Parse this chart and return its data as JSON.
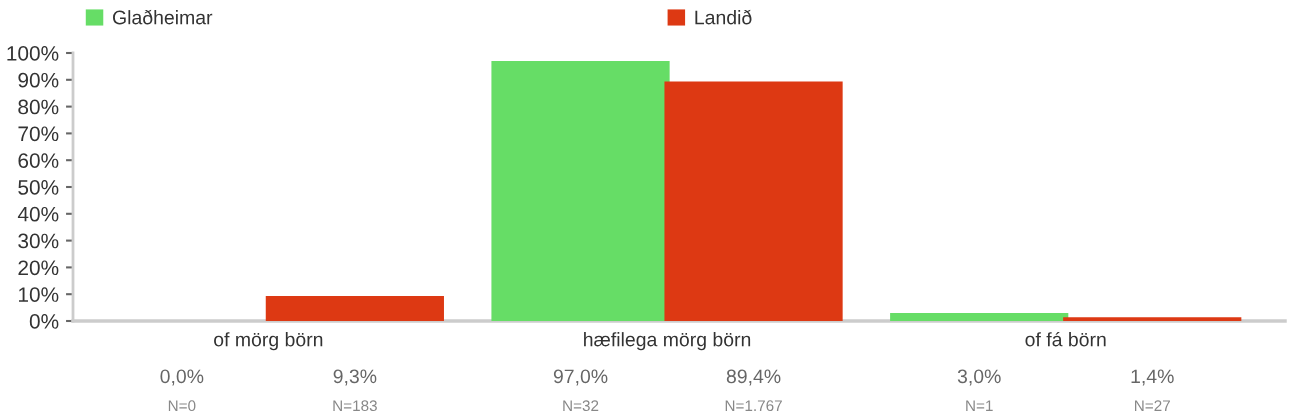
{
  "chart_data": {
    "type": "bar",
    "categories": [
      "of mörg börn",
      "hæfilega mörg börn",
      "of fá börn"
    ],
    "series": [
      {
        "name": "Glaðheimar",
        "color": "#66dd66",
        "values": [
          0.0,
          97.0,
          3.0
        ],
        "value_labels": [
          "0,0%\nN=0",
          "97,0%\nN=32",
          "3,0%\nN=1"
        ]
      },
      {
        "name": "Landið",
        "color": "#dd3913",
        "values": [
          9.3,
          89.4,
          1.4
        ],
        "value_labels": [
          "9,3%\nN=183",
          "89,4%\nN=1.767",
          "1,4%\nN=27"
        ]
      }
    ],
    "ylim": [
      0,
      100
    ],
    "yticks": [
      {
        "value": 0,
        "label": "0%"
      },
      {
        "value": 10,
        "label": "10%"
      },
      {
        "value": 20,
        "label": "20%"
      },
      {
        "value": 30,
        "label": "30%"
      },
      {
        "value": 40,
        "label": "40%"
      },
      {
        "value": 50,
        "label": "50%"
      },
      {
        "value": 60,
        "label": "60%"
      },
      {
        "value": 70,
        "label": "70%"
      },
      {
        "value": 80,
        "label": "80%"
      },
      {
        "value": 90,
        "label": "90%"
      },
      {
        "value": 100,
        "label": "100%"
      }
    ],
    "grid": false,
    "legend": "top"
  }
}
